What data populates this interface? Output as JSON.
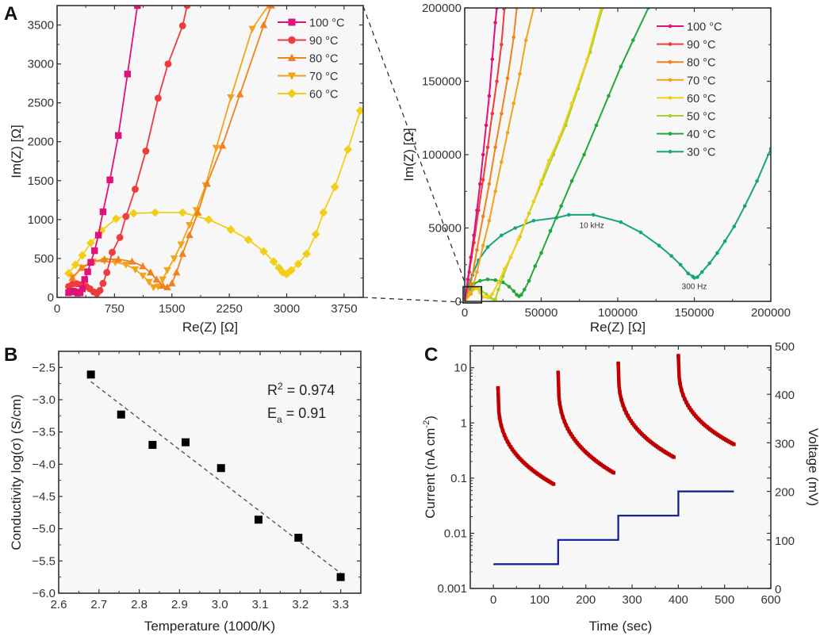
{
  "figure": {
    "panels": [
      "A",
      "B",
      "C"
    ]
  },
  "chart_data": [
    {
      "id": "A_left",
      "panel": "A",
      "type": "line",
      "title": "",
      "xlabel": "Re(Z) [Ω]",
      "ylabel": "Im(Z) [Ω]",
      "xlim": [
        0,
        4000
      ],
      "ylim": [
        0,
        3750
      ],
      "xticks": [
        "0",
        "750",
        "1500",
        "2250",
        "3000",
        "3750"
      ],
      "xtick_values": [
        0,
        750,
        1500,
        2250,
        3000,
        3750
      ],
      "yticks": [
        "0",
        "500",
        "1000",
        "1500",
        "2000",
        "2500",
        "3000",
        "3500"
      ],
      "ytick_values": [
        0,
        500,
        1000,
        1500,
        2000,
        2500,
        3000,
        3500
      ],
      "legend_position": "top-right",
      "series": [
        {
          "name": "100 °C",
          "color": "#e0127a",
          "marker": "square",
          "x": [
            150,
            180,
            210,
            240,
            270,
            300,
            330,
            360,
            400,
            440,
            490,
            540,
            600,
            690,
            800,
            920,
            1050
          ],
          "y": [
            60,
            75,
            80,
            70,
            55,
            60,
            110,
            230,
            330,
            450,
            600,
            800,
            1100,
            1510,
            2080,
            2870,
            3750
          ]
        },
        {
          "name": "90 °C",
          "color": "#ee3b3b",
          "marker": "circle",
          "x": [
            150,
            200,
            260,
            320,
            380,
            430,
            480,
            520,
            560,
            600,
            650,
            720,
            820,
            900,
            1020,
            1160,
            1320,
            1450,
            1640,
            1700
          ],
          "y": [
            140,
            170,
            175,
            165,
            140,
            110,
            70,
            50,
            90,
            180,
            320,
            580,
            770,
            1040,
            1390,
            1880,
            2560,
            3000,
            3490,
            3750
          ]
        },
        {
          "name": "80 °C",
          "color": "#f0821e",
          "marker": "triangle-up",
          "x": [
            200,
            320,
            460,
            620,
            800,
            980,
            1120,
            1220,
            1300,
            1380,
            1440,
            1500,
            1560,
            1640,
            1730,
            1840,
            1960,
            2160,
            2390,
            2700,
            2800
          ],
          "y": [
            250,
            380,
            460,
            490,
            490,
            460,
            400,
            320,
            230,
            150,
            130,
            180,
            320,
            560,
            800,
            1090,
            1460,
            1950,
            2610,
            3500,
            3750
          ]
        },
        {
          "name": "70 °C",
          "color": "#f2a31c",
          "marker": "triangle-down",
          "x": [
            200,
            330,
            470,
            620,
            760,
            900,
            1020,
            1120,
            1200,
            1260,
            1320,
            1380,
            1440,
            1530,
            1620,
            1730,
            1820,
            1940,
            2080,
            2270,
            2550,
            2760
          ],
          "y": [
            260,
            380,
            460,
            470,
            450,
            420,
            360,
            280,
            200,
            130,
            140,
            230,
            350,
            500,
            680,
            930,
            1120,
            1440,
            1920,
            2570,
            3450,
            3750
          ]
        },
        {
          "name": "60 °C",
          "color": "#f2cf16",
          "marker": "diamond",
          "x": [
            150,
            240,
            330,
            440,
            580,
            770,
            1000,
            1280,
            1640,
            1980,
            2270,
            2500,
            2700,
            2830,
            2900,
            2950,
            3000,
            3060,
            3150,
            3260,
            3380,
            3480,
            3630,
            3800,
            3960
          ],
          "y": [
            310,
            420,
            540,
            700,
            860,
            1010,
            1080,
            1090,
            1090,
            1000,
            870,
            740,
            590,
            460,
            380,
            320,
            300,
            350,
            430,
            560,
            810,
            1090,
            1420,
            1900,
            2400
          ]
        }
      ]
    },
    {
      "id": "A_right",
      "panel": "A",
      "type": "line",
      "title": "",
      "xlabel": "Re(Z) [Ω]",
      "ylabel": "Im(Z) [Ω]",
      "xlim": [
        0,
        200000
      ],
      "ylim": [
        0,
        200000
      ],
      "xticks": [
        "0",
        "50000",
        "100000",
        "150000",
        "200000"
      ],
      "xtick_values": [
        0,
        50000,
        100000,
        150000,
        200000
      ],
      "yticks": [
        "0",
        "50000",
        "100000",
        "150000",
        "200000"
      ],
      "ytick_values": [
        0,
        50000,
        100000,
        150000,
        200000
      ],
      "legend_position": "top-right",
      "inset_box": {
        "x": [
          0,
          10000
        ],
        "y": [
          0,
          10000
        ]
      },
      "annotations": [
        {
          "text": "10 kHz",
          "x": 83000,
          "y": 50000
        },
        {
          "text": "300 Hz",
          "x": 150000,
          "y": 8500
        }
      ],
      "series": [
        {
          "name": "100 °C",
          "color": "#e0127a",
          "x": [
            0,
            2000,
            4000,
            6000,
            8000,
            10000,
            12000,
            14000,
            16000,
            18000,
            20000,
            21000
          ],
          "y": [
            0,
            15000,
            30000,
            45000,
            62000,
            80000,
            100000,
            120000,
            140000,
            165000,
            190000,
            200000
          ]
        },
        {
          "name": "90 °C",
          "color": "#ee3b3b",
          "x": [
            0,
            3000,
            6000,
            9000,
            12000,
            15000,
            18000,
            21000,
            24000,
            26000
          ],
          "y": [
            0,
            20000,
            40000,
            62000,
            83000,
            105000,
            128000,
            150000,
            175000,
            200000
          ]
        },
        {
          "name": "80 °C",
          "color": "#f0821e",
          "x": [
            0,
            4000,
            8000,
            12000,
            16000,
            20000,
            24000,
            28000,
            32000,
            34000
          ],
          "y": [
            0,
            12000,
            35000,
            58000,
            80000,
            105000,
            128000,
            152000,
            180000,
            200000
          ]
        },
        {
          "name": "70 °C",
          "color": "#f2a31c",
          "x": [
            0,
            4000,
            8000,
            12000,
            16000,
            20000,
            24000,
            28000,
            32000,
            36000,
            40000,
            45000
          ],
          "y": [
            0,
            5000,
            20000,
            38000,
            55000,
            75000,
            95000,
            115000,
            135000,
            155000,
            178000,
            200000
          ]
        },
        {
          "name": "60 °C",
          "color": "#f2cf16",
          "x": [
            0,
            4000,
            8000,
            10000,
            12000,
            15000,
            18000,
            22000,
            26000,
            30000,
            35000,
            40000,
            45000,
            50000,
            55000,
            62000,
            70000,
            80000,
            89000
          ],
          "y": [
            0,
            6000,
            9000,
            6000,
            3000,
            2500,
            5000,
            13000,
            22000,
            30000,
            42000,
            55000,
            68000,
            82000,
            96000,
            112000,
            135000,
            165000,
            200000
          ]
        },
        {
          "name": "50 °C",
          "color": "#a6d22a",
          "x": [
            0,
            3000,
            6000,
            10000,
            14000,
            17000,
            19000,
            20000,
            22000,
            25000,
            30000,
            36000,
            42000,
            50000,
            58000,
            66000,
            74000,
            82000,
            90000
          ],
          "y": [
            0,
            6000,
            9000,
            8000,
            5000,
            2500,
            1000,
            1500,
            8000,
            17000,
            30000,
            44000,
            60000,
            80000,
            100000,
            120000,
            145000,
            170000,
            200000
          ]
        },
        {
          "name": "40 °C",
          "color": "#22a83a",
          "x": [
            0,
            3000,
            6000,
            10000,
            15000,
            20000,
            25000,
            29000,
            32000,
            34000,
            35500,
            37000,
            39000,
            42000,
            46000,
            50000,
            56000,
            63000,
            70000,
            78000,
            86000,
            94000,
            102000,
            110000,
            120000
          ],
          "y": [
            0,
            8000,
            12000,
            14000,
            15000,
            14500,
            13000,
            10000,
            7000,
            4500,
            3500,
            4500,
            8000,
            14000,
            24000,
            33000,
            48000,
            65000,
            82000,
            100000,
            120000,
            140000,
            160000,
            178000,
            200000
          ]
        },
        {
          "name": "30 °C",
          "color": "#14a57f",
          "x": [
            0,
            2000,
            5000,
            9000,
            15000,
            24000,
            33000,
            45000,
            60000,
            68000,
            84000,
            102000,
            115000,
            127000,
            135000,
            141000,
            146000,
            149000,
            150000,
            152000,
            155000,
            160000,
            165000,
            170000,
            176000,
            183000,
            191000,
            200000
          ],
          "y": [
            0,
            10000,
            18000,
            28000,
            37000,
            45000,
            50000,
            55000,
            57000,
            59000,
            59000,
            54000,
            47000,
            38000,
            31000,
            25000,
            19000,
            17000,
            16000,
            16500,
            20000,
            26000,
            33000,
            41000,
            51000,
            65000,
            82000,
            104000
          ]
        }
      ]
    },
    {
      "id": "B",
      "panel": "B",
      "type": "scatter",
      "title": "",
      "xlabel": "Temperature (1000/K)",
      "ylabel": "Conductivity log(σ) (S/cm)",
      "xlim": [
        2.6,
        3.35
      ],
      "ylim": [
        -6.0,
        -2.25
      ],
      "xticks": [
        "2.6",
        "2.7",
        "2.8",
        "2.9",
        "3.0",
        "3.1",
        "3.2",
        "3.3"
      ],
      "xtick_values": [
        2.6,
        2.7,
        2.8,
        2.9,
        3.0,
        3.1,
        3.2,
        3.3
      ],
      "yticks": [
        "−2.5",
        "−3.0",
        "−3.5",
        "−4.0",
        "−4.5",
        "−5.0",
        "−5.5",
        "−6.0"
      ],
      "ytick_values": [
        -2.5,
        -3.0,
        -3.5,
        -4.0,
        -4.5,
        -5.0,
        -5.5,
        -6.0
      ],
      "points": {
        "x": [
          2.68,
          2.755,
          2.833,
          2.915,
          3.003,
          3.096,
          3.195,
          3.3
        ],
        "y": [
          -2.61,
          -3.23,
          -3.7,
          -3.66,
          -4.06,
          -4.86,
          -5.14,
          -5.75
        ]
      },
      "fit_line": {
        "x": [
          2.68,
          3.3
        ],
        "y": [
          -2.72,
          -5.69
        ],
        "style": "dashed"
      },
      "annotations": [
        {
          "text_main": "R",
          "sup": "2",
          "text_rest": " = 0.974"
        },
        {
          "text_main": "E",
          "sub": "a",
          "text_rest": " = 0.91"
        }
      ]
    },
    {
      "id": "C",
      "panel": "C",
      "type": "scatter",
      "title": "",
      "xlabel": "Time (sec)",
      "ylabel": "Current (nA cm",
      "ylabel_sup": "-2",
      "ylabel_end": ")",
      "y2label": "Voltage (mV)",
      "xlim": [
        -50,
        600
      ],
      "ylim_log": [
        0.001,
        25
      ],
      "y2lim": [
        0,
        500
      ],
      "xticks": [
        "0",
        "100",
        "200",
        "300",
        "400",
        "500",
        "600"
      ],
      "xtick_values": [
        0,
        100,
        200,
        300,
        400,
        500,
        600
      ],
      "yticks": [
        "0.001",
        "0.01",
        "0.1",
        "1",
        "10"
      ],
      "ytick_values": [
        0.001,
        0.01,
        0.1,
        1,
        10
      ],
      "y2ticks": [
        "0",
        "100",
        "200",
        "300",
        "400",
        "500"
      ],
      "y2tick_values": [
        0,
        100,
        200,
        300,
        400,
        500
      ],
      "current_color": "#c00000",
      "voltage_color": "#0b1a8c",
      "current_segments": [
        {
          "t_start": 10,
          "t_end": 130,
          "i_peak": 4.3,
          "i_end": 0.078
        },
        {
          "t_start": 140,
          "t_end": 260,
          "i_peak": 8.2,
          "i_end": 0.125
        },
        {
          "t_start": 270,
          "t_end": 390,
          "i_peak": 12.0,
          "i_end": 0.24
        },
        {
          "t_start": 400,
          "t_end": 520,
          "i_peak": 16.5,
          "i_end": 0.41
        }
      ],
      "voltage_steps": {
        "t": [
          0,
          140,
          140,
          270,
          270,
          400,
          400,
          520
        ],
        "v": [
          50,
          50,
          100,
          100,
          150,
          150,
          200,
          200
        ]
      }
    }
  ]
}
